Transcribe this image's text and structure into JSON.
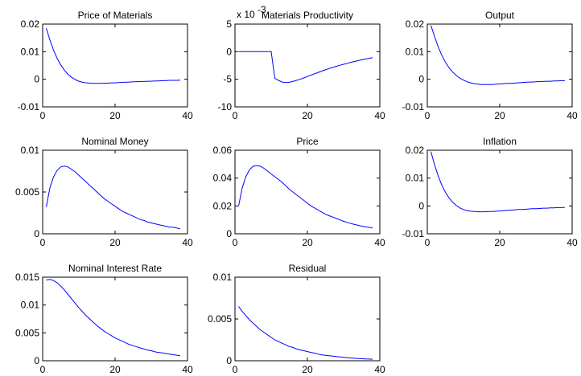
{
  "chart_data": [
    {
      "type": "line",
      "title": "Price of Materials",
      "xlim": [
        0,
        40
      ],
      "ylim": [
        -0.01,
        0.02
      ],
      "xticks": [
        "0",
        "20",
        "40"
      ],
      "yticks": [
        "-0.01",
        "0",
        "0.01",
        "0.02"
      ],
      "x": [
        1,
        2,
        3,
        4,
        5,
        6,
        7,
        8,
        9,
        10,
        11,
        12,
        13,
        14,
        15,
        16,
        17,
        18,
        19,
        20,
        21,
        22,
        23,
        24,
        25,
        26,
        27,
        28,
        29,
        30,
        31,
        32,
        33,
        34,
        35,
        36,
        37,
        38
      ],
      "values": [
        0.0185,
        0.0143,
        0.0106,
        0.0076,
        0.0052,
        0.0033,
        0.0018,
        0.0007,
        -0.0001,
        -0.0007,
        -0.0011,
        -0.0013,
        -0.0014,
        -0.0015,
        -0.0015,
        -0.0015,
        -0.0014,
        -0.0014,
        -0.0013,
        -0.0013,
        -0.0012,
        -0.0011,
        -0.0011,
        -0.001,
        -0.0009,
        -0.0009,
        -0.0008,
        -0.0008,
        -0.0007,
        -0.0007,
        -0.0006,
        -0.0006,
        -0.0005,
        -0.0005,
        -0.0004,
        -0.0004,
        -0.0004,
        -0.0003
      ],
      "color": "#0000ff",
      "grid": false
    },
    {
      "type": "line",
      "title": "Materials Productivity",
      "scale_label": "x 10",
      "scale_exponent": "-3",
      "xlim": [
        0,
        40
      ],
      "ylim": [
        -10,
        5
      ],
      "xticks": [
        "0",
        "20",
        "40"
      ],
      "yticks": [
        "-10",
        "-5",
        "0",
        "5"
      ],
      "x": [
        1,
        2,
        3,
        4,
        5,
        6,
        7,
        8,
        9,
        10,
        11,
        12,
        13,
        14,
        15,
        16,
        17,
        18,
        19,
        20,
        21,
        22,
        23,
        24,
        25,
        26,
        27,
        28,
        29,
        30,
        31,
        32,
        33,
        34,
        35,
        36,
        37,
        38
      ],
      "values": [
        0,
        0,
        0,
        0,
        0,
        0,
        0,
        0,
        0,
        0,
        -4.8,
        -5.2,
        -5.5,
        -5.6,
        -5.55,
        -5.4,
        -5.2,
        -5.0,
        -4.75,
        -4.5,
        -4.25,
        -4.0,
        -3.75,
        -3.5,
        -3.28,
        -3.06,
        -2.85,
        -2.65,
        -2.46,
        -2.28,
        -2.1,
        -1.93,
        -1.77,
        -1.62,
        -1.47,
        -1.33,
        -1.2,
        -1.07
      ],
      "color": "#0000ff",
      "grid": false
    },
    {
      "type": "line",
      "title": "Output",
      "xlim": [
        0,
        40
      ],
      "ylim": [
        -0.01,
        0.02
      ],
      "xticks": [
        "0",
        "20",
        "40"
      ],
      "yticks": [
        "-0.01",
        "0",
        "0.01",
        "0.02"
      ],
      "x": [
        1,
        2,
        3,
        4,
        5,
        6,
        7,
        8,
        9,
        10,
        11,
        12,
        13,
        14,
        15,
        16,
        17,
        18,
        19,
        20,
        21,
        22,
        23,
        24,
        25,
        26,
        27,
        28,
        29,
        30,
        31,
        32,
        33,
        34,
        35,
        36,
        37,
        38
      ],
      "values": [
        0.0195,
        0.0155,
        0.0118,
        0.0087,
        0.0062,
        0.0042,
        0.0026,
        0.0014,
        0.0004,
        -0.0003,
        -0.0009,
        -0.0013,
        -0.0016,
        -0.0018,
        -0.0019,
        -0.0019,
        -0.0019,
        -0.0019,
        -0.0018,
        -0.0017,
        -0.0016,
        -0.0015,
        -0.0015,
        -0.0014,
        -0.0013,
        -0.0012,
        -0.0011,
        -0.001,
        -0.001,
        -0.0009,
        -0.0008,
        -0.0008,
        -0.0007,
        -0.0007,
        -0.0006,
        -0.0006,
        -0.0005,
        -0.0005
      ],
      "color": "#0000ff",
      "grid": false
    },
    {
      "type": "line",
      "title": "Nominal Money",
      "xlim": [
        0,
        40
      ],
      "ylim": [
        0,
        0.01
      ],
      "xticks": [
        "0",
        "20",
        "40"
      ],
      "yticks": [
        "0",
        "0.005",
        "0.01"
      ],
      "x": [
        1,
        2,
        3,
        4,
        5,
        6,
        7,
        8,
        9,
        10,
        11,
        12,
        13,
        14,
        15,
        16,
        17,
        18,
        19,
        20,
        21,
        22,
        23,
        24,
        25,
        26,
        27,
        28,
        29,
        30,
        31,
        32,
        33,
        34,
        35,
        36,
        37,
        38
      ],
      "values": [
        0.0032,
        0.0055,
        0.0068,
        0.0076,
        0.008,
        0.0081,
        0.008,
        0.0077,
        0.0074,
        0.007,
        0.0066,
        0.0062,
        0.0058,
        0.0054,
        0.005,
        0.0046,
        0.0042,
        0.0039,
        0.0036,
        0.0033,
        0.003,
        0.0027,
        0.0025,
        0.0023,
        0.0021,
        0.0019,
        0.0017,
        0.0016,
        0.0014,
        0.0013,
        0.0012,
        0.0011,
        0.001,
        0.0009,
        0.0008,
        0.0008,
        0.0007,
        0.0006
      ],
      "color": "#0000ff",
      "grid": false
    },
    {
      "type": "line",
      "title": "Price",
      "xlim": [
        0,
        40
      ],
      "ylim": [
        0,
        0.06
      ],
      "xticks": [
        "0",
        "20",
        "40"
      ],
      "yticks": [
        "0",
        "0.02",
        "0.04",
        "0.06"
      ],
      "x": [
        1,
        2,
        3,
        4,
        5,
        6,
        7,
        8,
        9,
        10,
        11,
        12,
        13,
        14,
        15,
        16,
        17,
        18,
        19,
        20,
        21,
        22,
        23,
        24,
        25,
        26,
        27,
        28,
        29,
        30,
        31,
        32,
        33,
        34,
        35,
        36,
        37,
        38
      ],
      "values": [
        0.02,
        0.033,
        0.041,
        0.046,
        0.0485,
        0.049,
        0.0485,
        0.047,
        0.045,
        0.043,
        0.041,
        0.039,
        0.037,
        0.0345,
        0.032,
        0.03,
        0.028,
        0.026,
        0.024,
        0.022,
        0.02,
        0.0185,
        0.017,
        0.0155,
        0.014,
        0.013,
        0.012,
        0.011,
        0.01,
        0.009,
        0.0082,
        0.0074,
        0.0067,
        0.0061,
        0.0055,
        0.005,
        0.0046,
        0.0042
      ],
      "color": "#0000ff",
      "grid": false
    },
    {
      "type": "line",
      "title": "Inflation",
      "xlim": [
        0,
        40
      ],
      "ylim": [
        -0.01,
        0.02
      ],
      "xticks": [
        "0",
        "20",
        "40"
      ],
      "yticks": [
        "-0.01",
        "0",
        "0.01",
        "0.02"
      ],
      "x": [
        1,
        2,
        3,
        4,
        5,
        6,
        7,
        8,
        9,
        10,
        11,
        12,
        13,
        14,
        15,
        16,
        17,
        18,
        19,
        20,
        21,
        22,
        23,
        24,
        25,
        26,
        27,
        28,
        29,
        30,
        31,
        32,
        33,
        34,
        35,
        36,
        37,
        38
      ],
      "values": [
        0.0195,
        0.0148,
        0.0108,
        0.0075,
        0.0049,
        0.0029,
        0.0013,
        0.0002,
        -0.0007,
        -0.0013,
        -0.0017,
        -0.0019,
        -0.002,
        -0.0021,
        -0.0021,
        -0.0021,
        -0.002,
        -0.002,
        -0.0019,
        -0.0018,
        -0.0017,
        -0.0016,
        -0.0015,
        -0.0014,
        -0.0013,
        -0.0013,
        -0.0012,
        -0.0011,
        -0.001,
        -0.001,
        -0.0009,
        -0.0008,
        -0.0008,
        -0.0007,
        -0.0007,
        -0.0006,
        -0.0006,
        -0.0005
      ],
      "color": "#0000ff",
      "grid": false
    },
    {
      "type": "line",
      "title": "Nominal Interest Rate",
      "xlim": [
        0,
        40
      ],
      "ylim": [
        0,
        0.015
      ],
      "xticks": [
        "0",
        "20",
        "40"
      ],
      "yticks": [
        "0",
        "0.005",
        "0.01",
        "0.015"
      ],
      "x": [
        1,
        2,
        3,
        4,
        5,
        6,
        7,
        8,
        9,
        10,
        11,
        12,
        13,
        14,
        15,
        16,
        17,
        18,
        19,
        20,
        21,
        22,
        23,
        24,
        25,
        26,
        27,
        28,
        29,
        30,
        31,
        32,
        33,
        34,
        35,
        36,
        37,
        38
      ],
      "values": [
        0.0145,
        0.0146,
        0.0144,
        0.014,
        0.0134,
        0.0127,
        0.0119,
        0.0111,
        0.0103,
        0.0095,
        0.0088,
        0.0081,
        0.0075,
        0.0069,
        0.0063,
        0.0058,
        0.0053,
        0.0049,
        0.0045,
        0.0041,
        0.0038,
        0.0035,
        0.0032,
        0.0029,
        0.0027,
        0.0025,
        0.0023,
        0.0021,
        0.0019,
        0.0018,
        0.0016,
        0.0015,
        0.0014,
        0.0013,
        0.0012,
        0.0011,
        0.001,
        0.0009
      ],
      "color": "#0000ff",
      "grid": false
    },
    {
      "type": "line",
      "title": "Residual",
      "xlim": [
        0,
        40
      ],
      "ylim": [
        0,
        0.01
      ],
      "xticks": [
        "0",
        "20",
        "40"
      ],
      "yticks": [
        "0",
        "0.005",
        "0.01"
      ],
      "x": [
        1,
        2,
        3,
        4,
        5,
        6,
        7,
        8,
        9,
        10,
        11,
        12,
        13,
        14,
        15,
        16,
        17,
        18,
        19,
        20,
        21,
        22,
        23,
        24,
        25,
        26,
        27,
        28,
        29,
        30,
        31,
        32,
        33,
        34,
        35,
        36,
        37,
        38
      ],
      "values": [
        0.0065,
        0.0059,
        0.0054,
        0.0049,
        0.0045,
        0.0041,
        0.0037,
        0.0034,
        0.0031,
        0.0028,
        0.0025,
        0.0023,
        0.0021,
        0.0019,
        0.0017,
        0.0016,
        0.0014,
        0.0013,
        0.0012,
        0.0011,
        0.001,
        0.0009,
        0.0008,
        0.0007,
        0.00065,
        0.0006,
        0.00055,
        0.0005,
        0.00045,
        0.0004,
        0.00036,
        0.00033,
        0.0003,
        0.00027,
        0.00025,
        0.00022,
        0.0002,
        0.00018
      ],
      "color": "#0000ff",
      "grid": false
    }
  ]
}
